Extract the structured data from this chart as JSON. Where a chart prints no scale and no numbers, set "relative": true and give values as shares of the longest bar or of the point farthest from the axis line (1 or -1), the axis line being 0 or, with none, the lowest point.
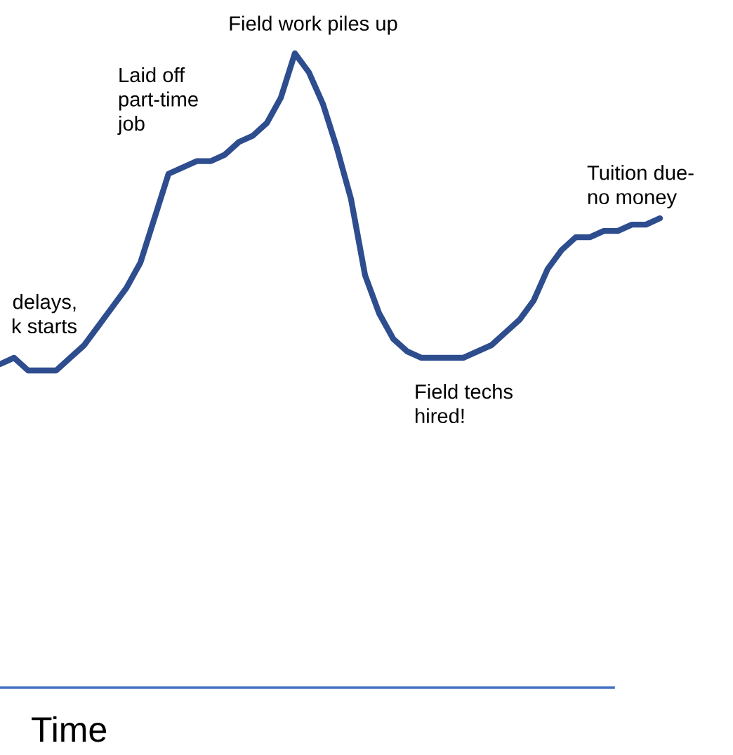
{
  "chart_data": {
    "type": "line",
    "relative": true,
    "xlabel": "Time",
    "categories": [
      null,
      null,
      null,
      null,
      null,
      null,
      null,
      null,
      null,
      null,
      null,
      null,
      null,
      null,
      null,
      null,
      null,
      null,
      null,
      null,
      null,
      null,
      null,
      null,
      null,
      null,
      null,
      null,
      null,
      null,
      null,
      null,
      null,
      null,
      null,
      null,
      null,
      null,
      null,
      null,
      null,
      null,
      null,
      null,
      null,
      null,
      null,
      null
    ],
    "series": [
      {
        "color": "#2e4d8e",
        "values": [
          0.51,
          0.52,
          0.5,
          0.5,
          0.5,
          0.52,
          0.54,
          0.57,
          0.6,
          0.63,
          0.67,
          0.74,
          0.81,
          0.82,
          0.83,
          0.83,
          0.84,
          0.86,
          0.87,
          0.89,
          0.93,
          1.0,
          0.97,
          0.92,
          0.85,
          0.77,
          0.65,
          0.59,
          0.55,
          0.53,
          0.52,
          0.52,
          0.52,
          0.52,
          0.53,
          0.54,
          0.56,
          0.58,
          0.61,
          0.66,
          0.69,
          0.71,
          0.71,
          0.72,
          0.72,
          0.73,
          0.73,
          0.74
        ]
      }
    ],
    "annotations": [
      "Field work piles up",
      "Laid off\npart-time\njob",
      "Tuition due-\nno money",
      "delays,\nk starts",
      "Field techs\nhired!"
    ],
    "line_style": "solid"
  }
}
